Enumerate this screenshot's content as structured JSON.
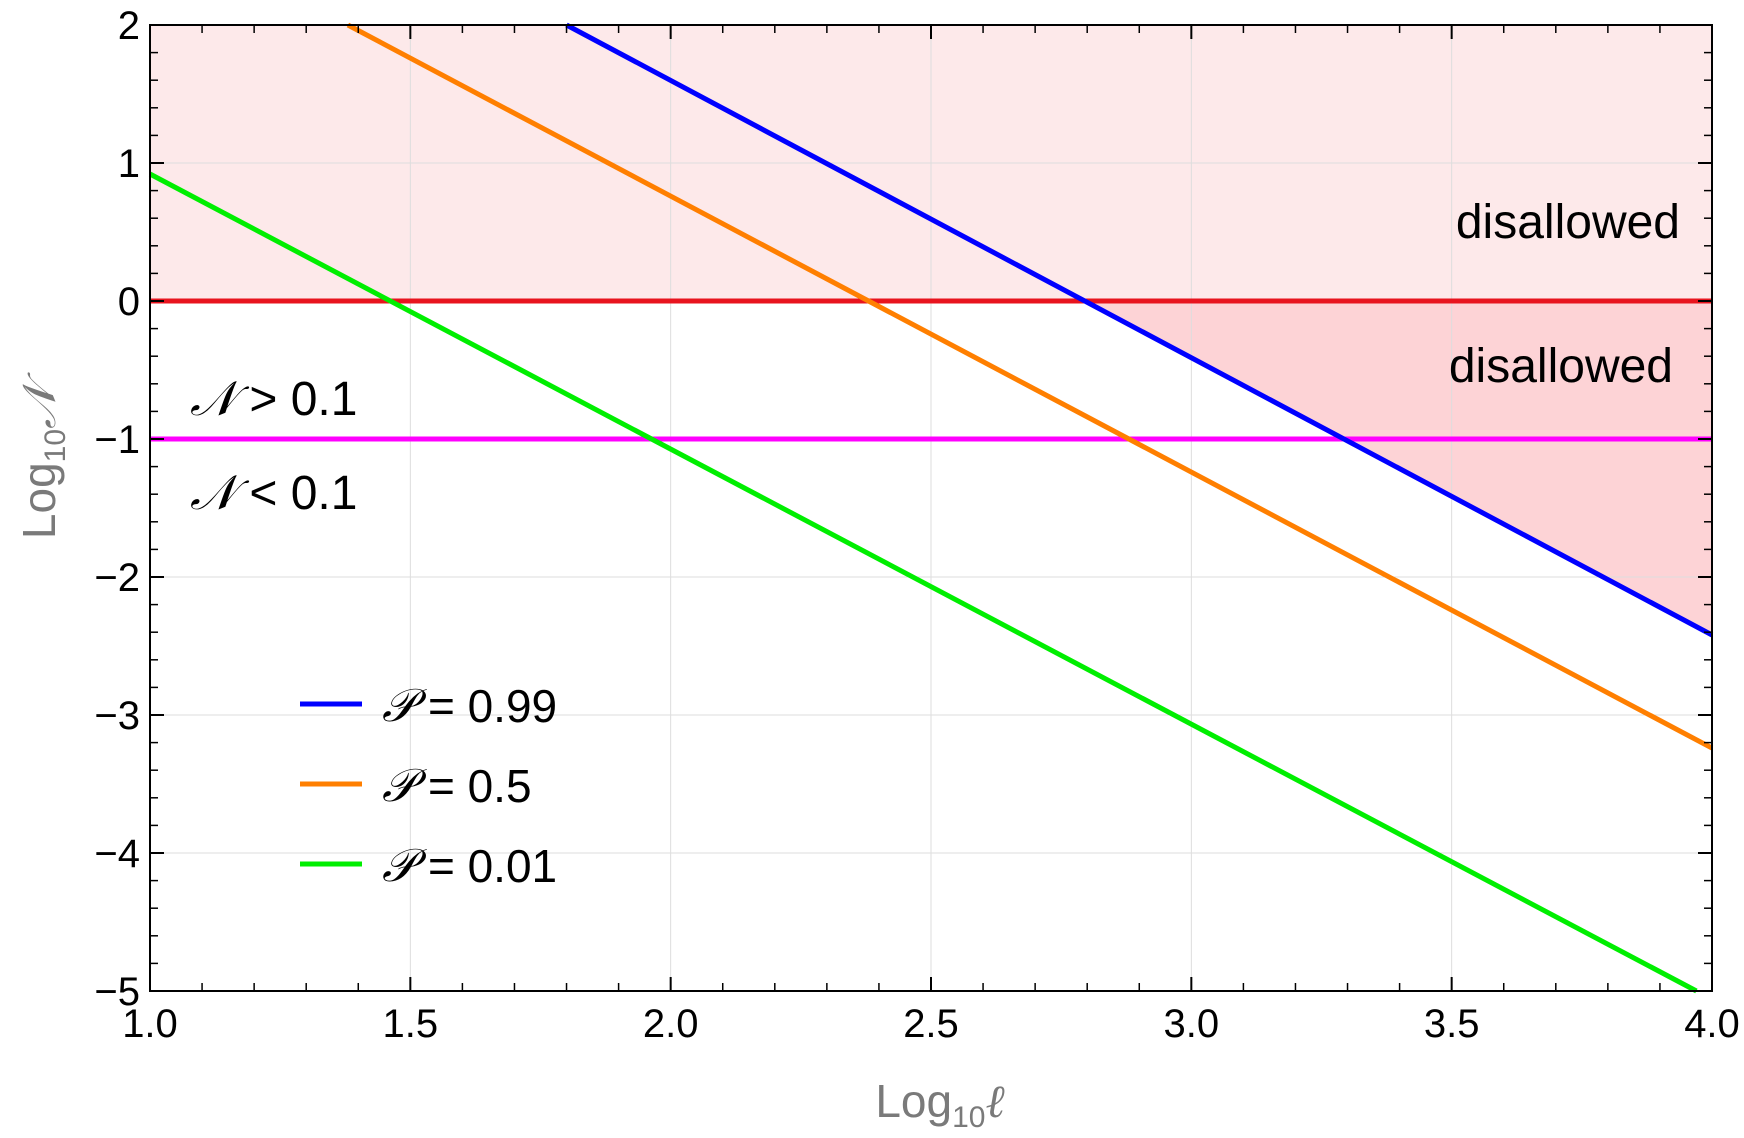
{
  "chart_data": {
    "type": "line",
    "xlabel": {
      "prefix": "Log",
      "sub": "10",
      "var": "ℓ"
    },
    "ylabel": {
      "prefix": "Log",
      "sub": "10",
      "var": "𝒩"
    },
    "xlim": [
      1.0,
      4.0
    ],
    "ylim": [
      -5,
      2
    ],
    "xticks": [
      1.0,
      1.5,
      2.0,
      2.5,
      3.0,
      3.5,
      4.0
    ],
    "xtick_labels": [
      "1.0",
      "1.5",
      "2.0",
      "2.5",
      "3.0",
      "3.5",
      "4.0"
    ],
    "yticks": [
      -5,
      -4,
      -3,
      -2,
      -1,
      0,
      1,
      2
    ],
    "ytick_labels": [
      "−5",
      "−4",
      "−3",
      "−2",
      "−1",
      "0",
      "1",
      "2"
    ],
    "grid": true,
    "legend_position": "lower-left",
    "series": [
      {
        "name": "𝒫 = 0.99",
        "var": "𝒫",
        "label": " = 0.99",
        "color": "#0000ff",
        "x": [
          1.8,
          4.0
        ],
        "y": [
          2.0,
          -2.42
        ]
      },
      {
        "name": "𝒫 = 0.5",
        "var": "𝒫",
        "label": " = 0.5",
        "color": "#ff7f00",
        "x": [
          1.38,
          4.0
        ],
        "y": [
          2.0,
          -3.24
        ]
      },
      {
        "name": "𝒫 = 0.01",
        "var": "𝒫",
        "label": " = 0.01",
        "color": "#00ee00",
        "x": [
          1.0,
          3.97
        ],
        "y": [
          0.92,
          -5.0
        ]
      }
    ],
    "thresholds": [
      {
        "y": 0,
        "color": "#e8141e"
      },
      {
        "y": -1,
        "color": "#ff00ff"
      }
    ],
    "regions": [
      {
        "label": "disallowed",
        "color": "#fde9ea",
        "y_from": 0,
        "y_to": 2
      },
      {
        "label": "disallowed",
        "color": "#fdd3d6",
        "bounded_by": "𝒫 = 0.99",
        "y_from": 0
      }
    ],
    "annotations": [
      {
        "var": "𝒩",
        "text": " > 0.1"
      },
      {
        "var": "𝒩",
        "text": " < 0.1"
      }
    ]
  }
}
